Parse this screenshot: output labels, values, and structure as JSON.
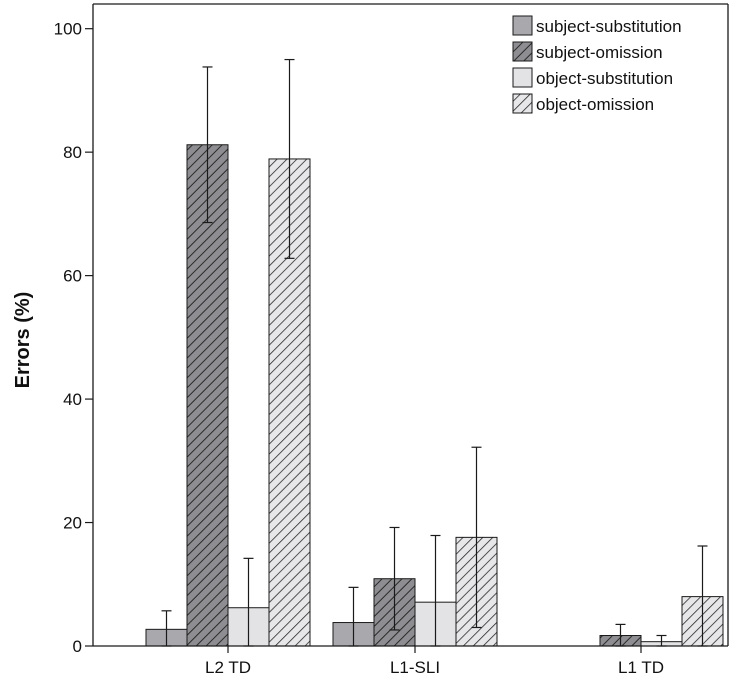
{
  "chart_data": {
    "type": "bar",
    "title": "",
    "xlabel": "",
    "ylabel": "Errors (%)",
    "ylim": [
      0,
      104
    ],
    "yticks": [
      0,
      20,
      40,
      60,
      80,
      100
    ],
    "categories": [
      "L2 TD",
      "L1-SLI",
      "L1 TD"
    ],
    "legend_position": "top-right",
    "grid": false,
    "series": [
      {
        "name": "subject-substitution",
        "fill": "#a9a9ad",
        "pattern": "solid",
        "values": [
          2.7,
          3.8,
          0.0
        ],
        "errors": [
          3.0,
          5.7,
          0.0
        ]
      },
      {
        "name": "subject-omission",
        "fill": "#8e8e92",
        "pattern": "hatch",
        "values": [
          81.2,
          10.9,
          1.7
        ],
        "errors": [
          12.6,
          8.3,
          1.8
        ]
      },
      {
        "name": "object-substitution",
        "fill": "#e3e3e5",
        "pattern": "solid",
        "values": [
          6.2,
          7.1,
          0.7
        ],
        "errors": [
          8.0,
          10.8,
          1.0
        ]
      },
      {
        "name": "object-omission",
        "fill": "#e7e7e9",
        "pattern": "hatch",
        "values": [
          78.9,
          17.6,
          8.0
        ],
        "errors": [
          16.1,
          14.6,
          8.2
        ]
      }
    ]
  }
}
